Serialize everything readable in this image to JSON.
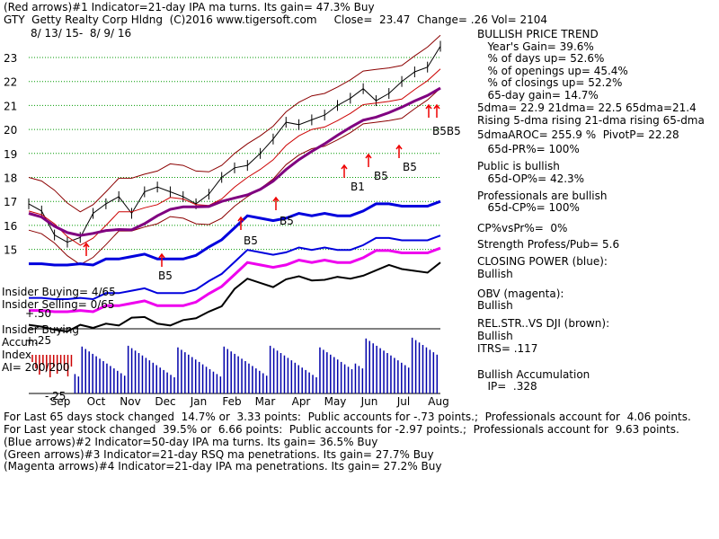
{
  "header": {
    "line1": "(Red arrows)#1 Indicator=21-day IPA ma turns. Its gain= 47.3% Buy",
    "line2": "GTY  Getty Realty Corp Hldng  (C)2016 www.tigersoft.com     Close=  23.47  Change= .26 Vol= 2104",
    "date_range": "8/ 13/ 15-  8/ 9/ 16"
  },
  "right_panel": [
    "BULLISH PRICE TREND",
    "   Year's Gain= 39.6%",
    "   % of days up= 52.6%",
    "   % of openings up= 45.4%",
    "   % of closings up= 52.2%",
    "   65-day gain= 14.7%",
    "5dma= 22.9 21dma= 22.5 65dma=21.4",
    "Rising 5-dma rising 21-dma rising 65-dma",
    "5dmaAROC= 255.9 %  PivotP= 22.28",
    "   65d-PR%= 100%",
    "Public is bullish",
    "   65d-OP%= 42.3%",
    "Professionals are bullish",
    "   65d-CP%= 100%",
    "CP%vsPr%=  0%",
    "Strength Profess/Pub= 5.6",
    "CLOSING POWER (blue):",
    "Bullish",
    "OBV (magenta):",
    "Bullish",
    "REL.STR..VS DJI (brown):",
    "Bullish",
    "ITRS= .117",
    "Bullish Accumulation",
    "   IP=  .328"
  ],
  "footer": [
    "For Last 65 days stock changed  14.7% or  3.33 points:  Public accounts for -.73 points.;  Professionals account for  4.06 points.",
    "For Last year stock changed  39.5% or  6.66 points:  Public accounts for -2.97 points.;  Professionals account for  9.63 points.",
    "(Blue arrows)#2 Indicator=50-day IPA ma turns. Its gain= 36.5% Buy",
    "(Green arrows)#3 Indicator=21-day RSQ ma penetrations. Its gain= 27.7% Buy",
    "(Magenta arrows)#4 Indicator=21-day IPA ma penetrations. Its gain= 27.2% Buy"
  ],
  "left_labels": {
    "insider_buying_top": "Insider Buying= 4/65",
    "insider_selling": "Insider Selling= 0/65",
    "plus50": "+.50",
    "insider_buying_acc": "Insider Buying",
    "accum": "Accum",
    "plus25": "+.25",
    "index": "Index",
    "ai": "AI= 200/200",
    "minus25": "-.25"
  },
  "signals": {
    "b5": "B5",
    "b1": "B1",
    "b5b5": "B5B5"
  },
  "colors": {
    "price": "#000000",
    "bands": "#8b0000",
    "ma65": "#800080",
    "ma21": "#cc0000",
    "closing_power": "#0000dd",
    "obv": "#ee00ee",
    "rel_str": "#000000",
    "accum_pos": "#0000aa",
    "accum_neg": "#cc0000",
    "grid": "#009900",
    "arrow": "#ee0000"
  },
  "chart_data": {
    "type": "line",
    "title": "GTY  Getty Realty Corp Hldng",
    "x_ticks": [
      "Sep",
      "Oct",
      "Nov",
      "Dec",
      "Jan",
      "Feb",
      "Mar",
      "Apr",
      "May",
      "Jun",
      "Jul",
      "Aug"
    ],
    "y_ticks": [
      15,
      16,
      17,
      18,
      19,
      20,
      21,
      22,
      23
    ],
    "ylim": [
      14.2,
      23.8
    ],
    "series": [
      {
        "name": "Close",
        "values": [
          16.9,
          16.6,
          15.6,
          15.3,
          15.5,
          16.5,
          16.9,
          17.2,
          16.5,
          17.4,
          17.6,
          17.4,
          17.2,
          16.9,
          17.3,
          18.0,
          18.4,
          18.5,
          19.0,
          19.6,
          20.3,
          20.2,
          20.4,
          20.6,
          21.0,
          21.3,
          21.7,
          21.2,
          21.5,
          22.0,
          22.4,
          22.6,
          23.47
        ]
      },
      {
        "name": "CLOSING POWER",
        "values": [
          14.4,
          14.4,
          14.35,
          14.35,
          14.4,
          14.35,
          14.6,
          14.6,
          14.7,
          14.8,
          14.6,
          14.6,
          14.6,
          14.75,
          15.1,
          15.4,
          15.9,
          16.4,
          16.3,
          16.2,
          16.3,
          16.5,
          16.4,
          16.5,
          16.4,
          16.4,
          16.6,
          16.9,
          16.9,
          16.8,
          16.8,
          16.8,
          17.0
        ]
      }
    ],
    "grid": true,
    "legend": "none"
  }
}
